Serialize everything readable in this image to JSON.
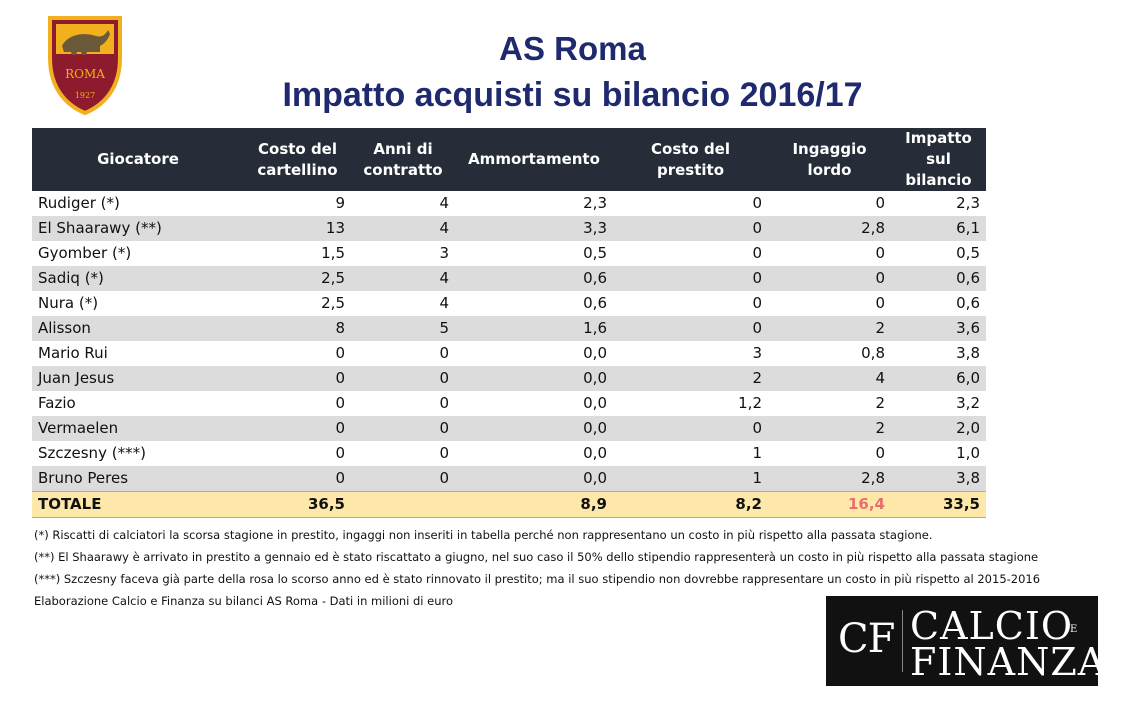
{
  "logo": {
    "text": "ROMA",
    "year": "1927"
  },
  "title": {
    "line1": "AS Roma",
    "line2": "Impatto acquisti su bilancio 2016/17"
  },
  "table": {
    "headers": [
      "Giocatore",
      "Costo del cartellino",
      "Anni di contratto",
      "Ammortamento",
      "Costo del prestito",
      "Ingaggio lordo",
      "Impatto sul bilancio"
    ],
    "rows": [
      [
        "Rudiger (*)",
        "9",
        "4",
        "2,3",
        "0",
        "0",
        "2,3"
      ],
      [
        "El Shaarawy (**)",
        "13",
        "4",
        "3,3",
        "0",
        "2,8",
        "6,1"
      ],
      [
        "Gyomber (*)",
        "1,5",
        "3",
        "0,5",
        "0",
        "0",
        "0,5"
      ],
      [
        "Sadiq (*)",
        "2,5",
        "4",
        "0,6",
        "0",
        "0",
        "0,6"
      ],
      [
        "Nura (*)",
        "2,5",
        "4",
        "0,6",
        "0",
        "0",
        "0,6"
      ],
      [
        "Alisson",
        "8",
        "5",
        "1,6",
        "0",
        "2",
        "3,6"
      ],
      [
        "Mario Rui",
        "0",
        "0",
        "0,0",
        "3",
        "0,8",
        "3,8"
      ],
      [
        "Juan Jesus",
        "0",
        "0",
        "0,0",
        "2",
        "4",
        "6,0"
      ],
      [
        "Fazio",
        "0",
        "0",
        "0,0",
        "1,2",
        "2",
        "3,2"
      ],
      [
        "Vermaelen",
        "0",
        "0",
        "0,0",
        "0",
        "2",
        "2,0"
      ],
      [
        "Szczesny (***)",
        "0",
        "0",
        "0,0",
        "1",
        "0",
        "1,0"
      ],
      [
        "Bruno Peres",
        "0",
        "0",
        "0,0",
        "1",
        "2,8",
        "3,8"
      ]
    ],
    "total": [
      "TOTALE",
      "36,5",
      "",
      "8,9",
      "8,2",
      "16,4",
      "33,5"
    ]
  },
  "notes": [
    "(*) Riscatti di calciatori la scorsa stagione in prestito, ingaggi non inseriti in tabella perché non rappresentano un costo in più rispetto alla passata stagione.",
    "(**) El Shaarawy è arrivato in prestito a gennaio ed è stato riscattato a giugno, nel suo caso il 50% dello stipendio rappresenterà un costo in più rispetto alla passata stagione",
    "(***) Szczesny faceva già parte della rosa lo scorso anno ed è stato rinnovato il prestito; ma il suo stipendio non dovrebbe rappresentare un costo in più rispetto al 2015-2016",
    "Elaborazione Calcio e Finanza su bilanci AS Roma - Dati in milioni di euro"
  ],
  "brand": {
    "abbr": "CF",
    "word1": "CALCIO",
    "e": "E",
    "word2": "FINANZA"
  },
  "colors": {
    "header_bg": "#262d39",
    "title": "#1f2a6e",
    "total_bg": "#fde7a9",
    "alt_row": "#dcdcdc",
    "highlight": "#e8706c"
  }
}
